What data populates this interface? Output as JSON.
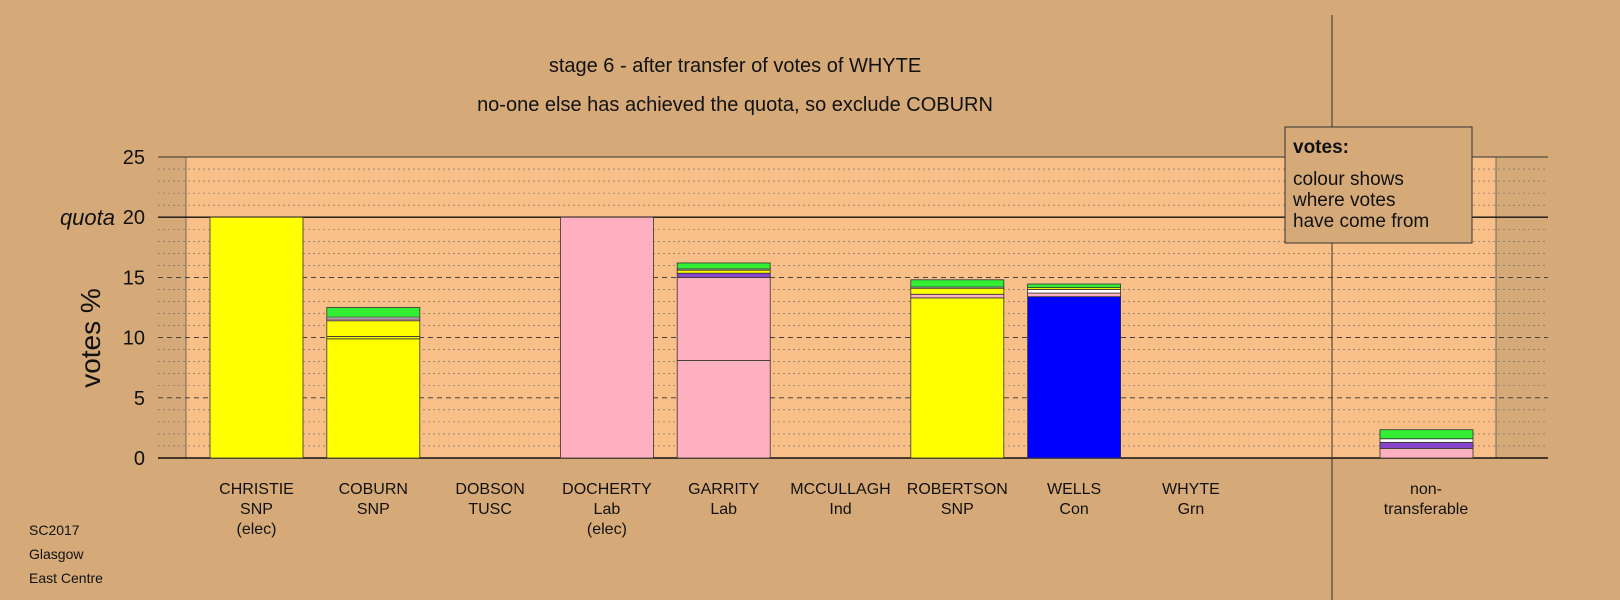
{
  "chart_data": {
    "type": "bar",
    "title": "stage 6 - after transfer of votes of WHYTE",
    "subtitle": "no-one else has achieved the quota, so exclude COBURN",
    "ylabel": "votes %",
    "ylim": [
      0,
      25
    ],
    "yticks": [
      "0",
      "5",
      "10",
      "15",
      "20",
      "25"
    ],
    "quota": 20,
    "quota_label": "quota",
    "grid": true,
    "categories": [
      {
        "name": "CHRISTIE",
        "party": "SNP",
        "note": "(elec)"
      },
      {
        "name": "COBURN",
        "party": "SNP",
        "note": ""
      },
      {
        "name": "DOBSON",
        "party": "TUSC",
        "note": ""
      },
      {
        "name": "DOCHERTY",
        "party": "Lab",
        "note": "(elec)"
      },
      {
        "name": "GARRITY",
        "party": "Lab",
        "note": ""
      },
      {
        "name": "MCCULLAGH",
        "party": "Ind",
        "note": ""
      },
      {
        "name": "ROBERTSON",
        "party": "SNP",
        "note": ""
      },
      {
        "name": "WELLS",
        "party": "Con",
        "note": ""
      },
      {
        "name": "WHYTE",
        "party": "Grn",
        "note": ""
      }
    ],
    "nontransferable": {
      "line1": "non-",
      "line2": "transferable"
    },
    "colors": {
      "SNP": "#ffff00",
      "Lab": "#ffb0c0",
      "Con": "#0000ff",
      "Grn": "#33ee33",
      "Ind": "#8844cc",
      "TUSC": "#ff0000",
      "Other": "#ffffff"
    },
    "bars": [
      {
        "segments": [
          {
            "from": "SNP",
            "value": 20.0
          }
        ]
      },
      {
        "segments": [
          {
            "from": "SNP",
            "value": 9.9
          },
          {
            "from": "SNP",
            "value": 0.2
          },
          {
            "from": "SNP",
            "value": 1.3
          },
          {
            "from": "Lab",
            "value": 0.15
          },
          {
            "from": "Other",
            "value": 0.15
          },
          {
            "from": "Grn",
            "value": 0.8
          }
        ]
      },
      {
        "segments": []
      },
      {
        "segments": [
          {
            "from": "Lab",
            "value": 20.0
          }
        ]
      },
      {
        "segments": [
          {
            "from": "Lab",
            "value": 8.1
          },
          {
            "from": "Lab",
            "value": 6.9
          },
          {
            "from": "Ind",
            "value": 0.35
          },
          {
            "from": "SNP",
            "value": 0.25
          },
          {
            "from": "Other",
            "value": 0.1
          },
          {
            "from": "Grn",
            "value": 0.5
          }
        ]
      },
      {
        "segments": []
      },
      {
        "segments": [
          {
            "from": "SNP",
            "value": 13.3
          },
          {
            "from": "Lab",
            "value": 0.3
          },
          {
            "from": "SNP",
            "value": 0.5
          },
          {
            "from": "Other",
            "value": 0.1
          },
          {
            "from": "Grn",
            "value": 0.6
          }
        ]
      },
      {
        "segments": [
          {
            "from": "Con",
            "value": 13.4
          },
          {
            "from": "Lab",
            "value": 0.3
          },
          {
            "from": "Other",
            "value": 0.3
          },
          {
            "from": "SNP",
            "value": 0.15
          },
          {
            "from": "Grn",
            "value": 0.3
          }
        ]
      },
      {
        "segments": []
      }
    ],
    "nontransferable_segments": [
      {
        "from": "Lab",
        "value": 0.8
      },
      {
        "from": "Ind",
        "value": 0.5
      },
      {
        "from": "Other",
        "value": 0.3
      },
      {
        "from": "Grn",
        "value": 0.75
      }
    ],
    "legend": {
      "title": "votes:",
      "lines": [
        "colour shows",
        "where votes",
        "have come from"
      ],
      "position": "top-right"
    }
  },
  "footer": {
    "line1": "SC2017",
    "line2": "Glasgow",
    "line3": "East Centre"
  }
}
